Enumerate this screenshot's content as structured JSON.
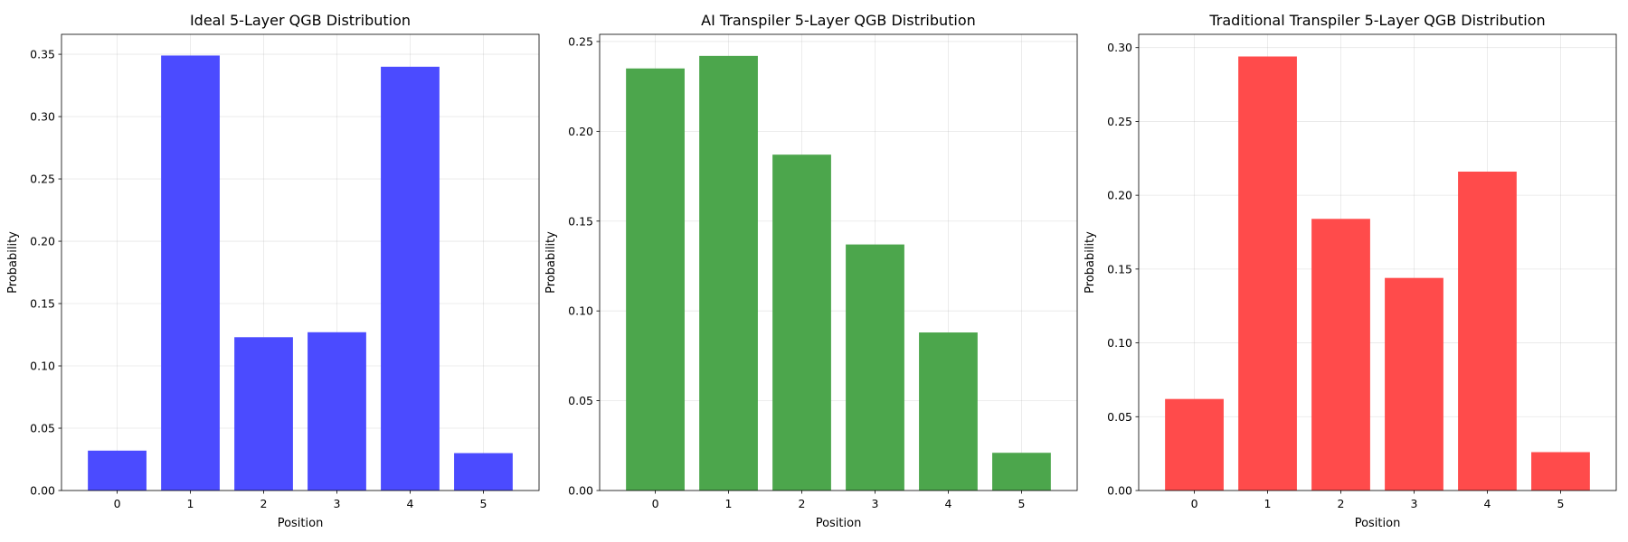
{
  "chart_data": [
    {
      "type": "bar",
      "title": "Ideal 5-Layer QGB Distribution",
      "xlabel": "Position",
      "ylabel": "Probability",
      "categories": [
        "0",
        "1",
        "2",
        "3",
        "4",
        "5"
      ],
      "values": [
        0.032,
        0.349,
        0.123,
        0.127,
        0.34,
        0.03
      ],
      "ylim": [
        0,
        0.366
      ],
      "yticks": [
        "0.00",
        "0.05",
        "0.10",
        "0.15",
        "0.20",
        "0.25",
        "0.30",
        "0.35"
      ],
      "color": "#4b4bff",
      "grid": true
    },
    {
      "type": "bar",
      "title": "AI Transpiler 5-Layer QGB Distribution",
      "xlabel": "Position",
      "ylabel": "Probability",
      "categories": [
        "0",
        "1",
        "2",
        "3",
        "4",
        "5"
      ],
      "values": [
        0.235,
        0.242,
        0.187,
        0.137,
        0.088,
        0.021
      ],
      "ylim": [
        0,
        0.254
      ],
      "yticks": [
        "0.00",
        "0.05",
        "0.10",
        "0.15",
        "0.20",
        "0.25"
      ],
      "color": "#4ca64c",
      "grid": true
    },
    {
      "type": "bar",
      "title": "Traditional Transpiler 5-Layer QGB Distribution",
      "xlabel": "Position",
      "ylabel": "Probability",
      "categories": [
        "0",
        "1",
        "2",
        "3",
        "4",
        "5"
      ],
      "values": [
        0.062,
        0.294,
        0.184,
        0.144,
        0.216,
        0.026
      ],
      "ylim": [
        0,
        0.309
      ],
      "yticks": [
        "0.00",
        "0.05",
        "0.10",
        "0.15",
        "0.20",
        "0.25",
        "0.30"
      ],
      "color": "#ff4b4b",
      "grid": true
    }
  ]
}
